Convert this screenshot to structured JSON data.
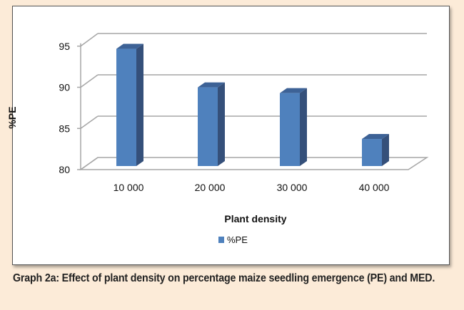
{
  "chart_data": {
    "type": "bar",
    "title": "",
    "categories": [
      "10 000",
      "20 000",
      "30 000",
      "40 000"
    ],
    "series": [
      {
        "name": "%PE",
        "values": [
          94.3,
          89.6,
          88.9,
          83.3
        ]
      }
    ],
    "xlabel": "Plant density",
    "ylabel": "%PE",
    "ylim": [
      80,
      95
    ],
    "yticks": [
      "80",
      "85",
      "90",
      "95"
    ],
    "grid": true,
    "legend": "bottom-center",
    "style": "3d-column"
  },
  "colors": {
    "bar_front": "#4f81bd",
    "bar_side": "#35507a",
    "bar_top": "#3d6296"
  },
  "caption": "Graph 2a: Effect of plant density on percentage maize seedling emergence (PE) and MED."
}
